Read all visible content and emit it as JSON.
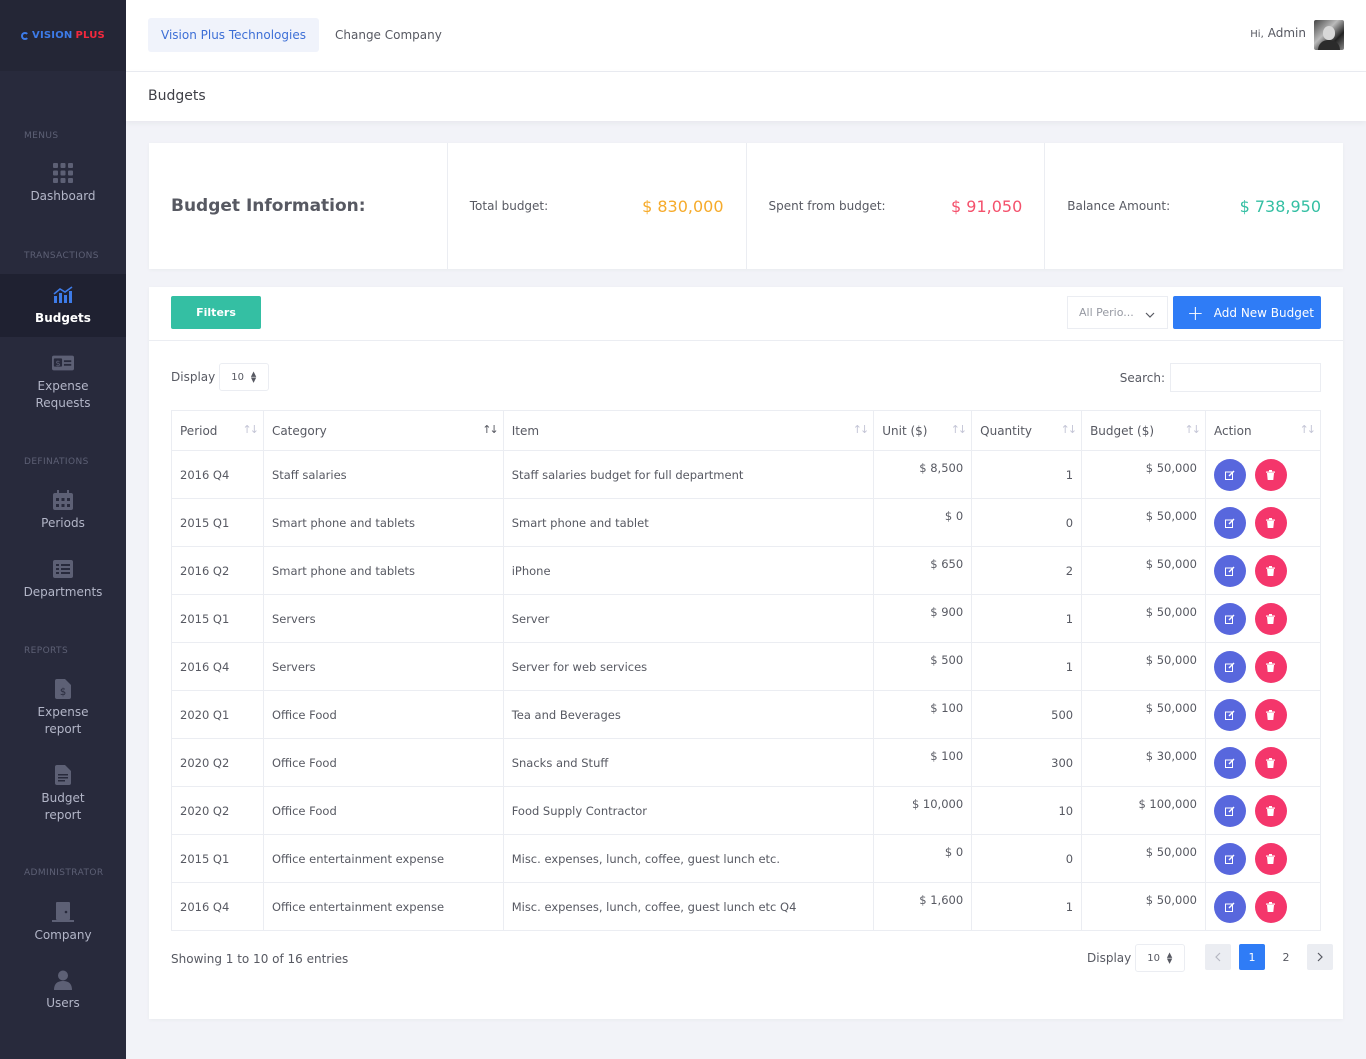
{
  "brand": {
    "word1": "VISION",
    "word2": "PLUS"
  },
  "sidebar": {
    "sections": {
      "menus": "MENUS",
      "transactions": "TRANSACTIONS",
      "definations": "DEFINATIONS",
      "reports": "REPORTS",
      "administrator": "ADMINISTRATOR"
    },
    "items": {
      "dashboard": "Dashboard",
      "budgets": "Budgets",
      "expense_requests_1": "Expense",
      "expense_requests_2": "Requests",
      "periods": "Periods",
      "departments": "Departments",
      "expense_report_1": "Expense",
      "expense_report_2": "report",
      "budget_report_1": "Budget",
      "budget_report_2": "report",
      "company": "Company",
      "users": "Users"
    }
  },
  "topbar": {
    "company": "Vision Plus Technologies",
    "change_company": "Change Company",
    "hi": "Hi,",
    "user": "Admin"
  },
  "page_title": "Budgets",
  "info": {
    "title": "Budget Information:",
    "total_label": "Total budget:",
    "total_value": "$ 830,000",
    "spent_label": "Spent from budget:",
    "spent_value": "$ 91,050",
    "balance_label": "Balance Amount:",
    "balance_value": "$ 738,950"
  },
  "toolbar": {
    "filters": "Filters",
    "period": "All Perio...",
    "add": "Add New Budget"
  },
  "list": {
    "display": "Display",
    "length": "10",
    "search": "Search:",
    "columns": {
      "period": "Period",
      "category": "Category",
      "item": "Item",
      "unit": "Unit ($)",
      "quantity": "Quantity",
      "budget": "Budget ($)",
      "action": "Action"
    },
    "rows": [
      {
        "period": "2016 Q4",
        "category": "Staff salaries",
        "item": "Staff salaries budget for full department",
        "unit": "$ 8,500",
        "quantity": "1",
        "budget": "$ 50,000"
      },
      {
        "period": "2015 Q1",
        "category": "Smart phone and tablets",
        "item": "Smart phone and tablet",
        "unit": "$ 0",
        "quantity": "0",
        "budget": "$ 50,000"
      },
      {
        "period": "2016 Q2",
        "category": "Smart phone and tablets",
        "item": "iPhone",
        "unit": "$ 650",
        "quantity": "2",
        "budget": "$ 50,000"
      },
      {
        "period": "2015 Q1",
        "category": "Servers",
        "item": "Server",
        "unit": "$ 900",
        "quantity": "1",
        "budget": "$ 50,000"
      },
      {
        "period": "2016 Q4",
        "category": "Servers",
        "item": "Server for web services",
        "unit": "$ 500",
        "quantity": "1",
        "budget": "$ 50,000"
      },
      {
        "period": "2020 Q1",
        "category": "Office Food",
        "item": "Tea and Beverages",
        "unit": "$ 100",
        "quantity": "500",
        "budget": "$ 50,000"
      },
      {
        "period": "2020 Q2",
        "category": "Office Food",
        "item": "Snacks and Stuff",
        "unit": "$ 100",
        "quantity": "300",
        "budget": "$ 30,000"
      },
      {
        "period": "2020 Q2",
        "category": "Office Food",
        "item": "Food Supply Contractor",
        "unit": "$ 10,000",
        "quantity": "10",
        "budget": "$ 100,000"
      },
      {
        "period": "2015 Q1",
        "category": "Office entertainment expense",
        "item": "Misc. expenses, lunch, coffee, guest lunch etc.",
        "unit": "$ 0",
        "quantity": "0",
        "budget": "$ 50,000"
      },
      {
        "period": "2016 Q4",
        "category": "Office entertainment expense",
        "item": "Misc. expenses, lunch, coffee, guest lunch etc Q4",
        "unit": "$ 1,600",
        "quantity": "1",
        "budget": "$ 50,000"
      }
    ],
    "showing": "Showing 1 to 10 of 16 entries",
    "footer_display": "Display",
    "footer_length": "10",
    "pages": [
      "1",
      "2"
    ]
  }
}
